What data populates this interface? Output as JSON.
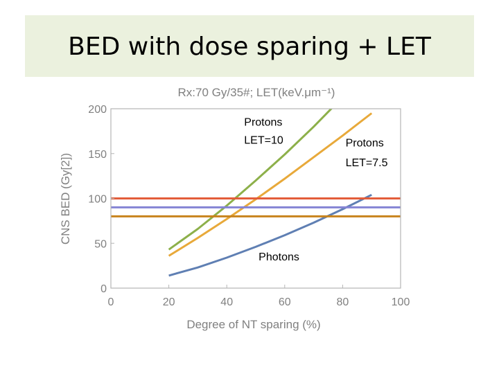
{
  "slide": {
    "title": "BED with dose sparing + LET"
  },
  "chart_data": {
    "type": "line",
    "title": "Rx:70 Gy/35#; LET(keV.μm⁻¹)",
    "xlabel": "Degree of NT sparing (%)",
    "ylabel": "CNS BED (Gy[2])",
    "xlim": [
      0,
      100
    ],
    "ylim": [
      0,
      200
    ],
    "xticks": [
      "0",
      "20",
      "40",
      "60",
      "80",
      "100"
    ],
    "yticks": [
      "0",
      "50",
      "100",
      "150",
      "200"
    ],
    "grid": false,
    "series": [
      {
        "color": "#8db04a",
        "x": [
          20,
          30,
          40,
          50,
          60,
          70,
          80
        ],
        "y": [
          43,
          66,
          92,
          120,
          149,
          180,
          213
        ]
      },
      {
        "color": "#e8a93a",
        "x": [
          20,
          30,
          40,
          50,
          60,
          70,
          80,
          90
        ],
        "y": [
          36,
          56,
          77,
          99,
          122,
          146,
          170,
          195
        ]
      },
      {
        "color": "#5f7fb3",
        "x": [
          20,
          30,
          40,
          50,
          60,
          70,
          80,
          90
        ],
        "y": [
          14,
          23,
          34,
          46,
          59,
          73,
          88,
          104
        ]
      },
      {
        "color": "#e35d3a",
        "x": [
          0,
          100
        ],
        "y": [
          100,
          100
        ]
      },
      {
        "color": "#8484d4",
        "x": [
          0,
          100
        ],
        "y": [
          90,
          90
        ]
      },
      {
        "color": "#c8831c",
        "x": [
          0,
          100
        ],
        "y": [
          80,
          80
        ]
      }
    ],
    "annotations": [
      {
        "text": "Protons",
        "x": 46,
        "y": 181,
        "anchor": "start"
      },
      {
        "text": "LET=10",
        "x": 46,
        "y": 161,
        "anchor": "start"
      },
      {
        "text": "Protons",
        "x": 81,
        "y": 158,
        "anchor": "start"
      },
      {
        "text": "LET=7.5",
        "x": 81,
        "y": 136,
        "anchor": "start"
      },
      {
        "text": "Photons",
        "x": 51,
        "y": 31,
        "anchor": "start"
      }
    ]
  }
}
